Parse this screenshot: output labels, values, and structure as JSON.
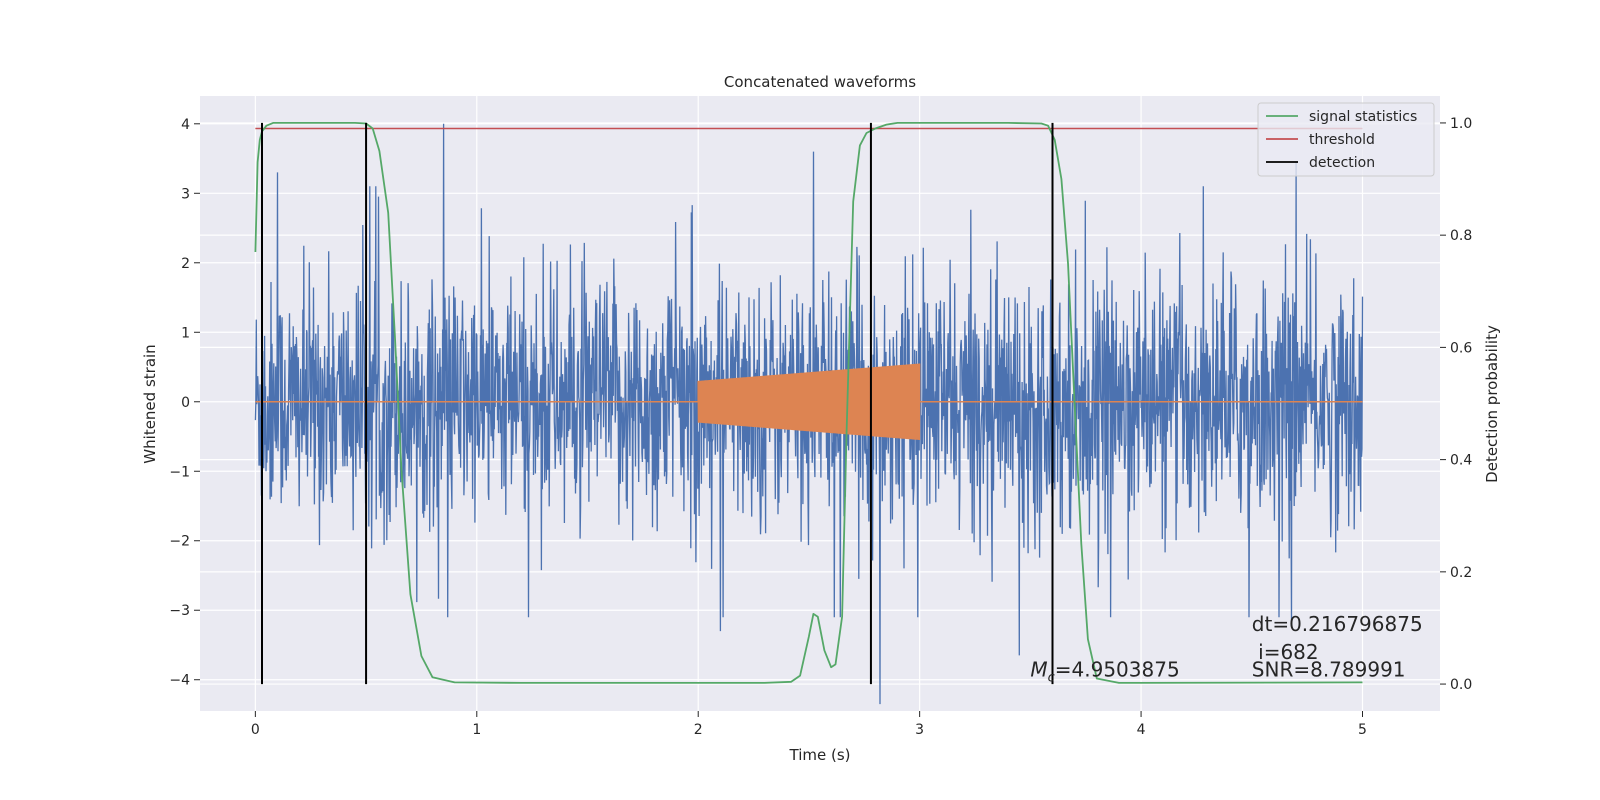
{
  "chart_data": {
    "type": "line",
    "title": "Concatenated waveforms",
    "xlabel": "Time (s)",
    "ylabel": "Whitened strain",
    "y2label": "Detection probability",
    "xlim": [
      -0.25,
      5.35
    ],
    "ylim": [
      -4.45,
      4.4
    ],
    "y2lim": [
      -0.048,
      1.048
    ],
    "x_ticks": [
      0,
      1,
      2,
      3,
      4,
      5
    ],
    "x_tick_labels": [
      "0",
      "1",
      "2",
      "3",
      "4",
      "5"
    ],
    "y_ticks": [
      -4,
      -3,
      -2,
      -1,
      0,
      1,
      2,
      3,
      4
    ],
    "y_tick_labels": [
      "−4",
      "−3",
      "−2",
      "−1",
      "0",
      "1",
      "2",
      "3",
      "4"
    ],
    "y2_ticks": [
      0,
      0.2,
      0.4,
      0.6,
      0.8,
      1.0
    ],
    "y2_tick_labels": [
      "0.0",
      "0.2",
      "0.4",
      "0.6",
      "0.8",
      "1.0"
    ],
    "grid": true,
    "legend_position": "top-right",
    "colors": {
      "background": "#eaeaf2",
      "grid": "#ffffff",
      "strain": "#4c72b0",
      "template": "#dd8452",
      "signal_statistics": "#55a868",
      "threshold": "#c44e52",
      "detection": "#000000"
    },
    "series": [
      {
        "name": "signal statistics",
        "axis": "right",
        "x": [
          0,
          0.01,
          0.02,
          0.03,
          0.05,
          0.08,
          0.12,
          0.2,
          0.3,
          0.45,
          0.5,
          0.53,
          0.56,
          0.6,
          0.63,
          0.66,
          0.7,
          0.75,
          0.8,
          0.9,
          1.2,
          2.0,
          2.3,
          2.42,
          2.46,
          2.5,
          2.52,
          2.54,
          2.57,
          2.6,
          2.62,
          2.65,
          2.67,
          2.7,
          2.73,
          2.76,
          2.8,
          2.85,
          2.9,
          3.0,
          3.4,
          3.55,
          3.58,
          3.61,
          3.64,
          3.67,
          3.7,
          3.73,
          3.76,
          3.8,
          3.9,
          4.0,
          5.0
        ],
        "values": [
          0.77,
          0.93,
          0.97,
          0.985,
          0.995,
          1.0,
          1.0,
          1.0,
          1.0,
          1.0,
          0.999,
          0.99,
          0.95,
          0.84,
          0.62,
          0.38,
          0.16,
          0.05,
          0.012,
          0.003,
          0.002,
          0.002,
          0.002,
          0.004,
          0.015,
          0.085,
          0.125,
          0.12,
          0.06,
          0.03,
          0.035,
          0.12,
          0.45,
          0.86,
          0.96,
          0.982,
          0.99,
          0.997,
          1.0,
          1.0,
          1.0,
          0.999,
          0.995,
          0.97,
          0.9,
          0.75,
          0.5,
          0.25,
          0.08,
          0.01,
          0.002,
          0.002,
          0.003
        ]
      },
      {
        "name": "threshold",
        "axis": "right",
        "x": [
          0,
          5
        ],
        "values": [
          0.99,
          0.99
        ]
      }
    ],
    "detections": {
      "name": "detection",
      "x": [
        0.03,
        0.5,
        2.78,
        3.6
      ],
      "ymin": 0,
      "ymax": 1.0
    },
    "strain": {
      "x_range": [
        0,
        5
      ],
      "noise_std": 0.85,
      "spikes": [
        {
          "x": 0.85,
          "value": 4.0
        },
        {
          "x": 2.52,
          "value": 3.6
        },
        {
          "x": 2.82,
          "value": -4.35
        },
        {
          "x": 4.7,
          "value": 3.45
        },
        {
          "x": 3.45,
          "value": -3.65
        },
        {
          "x": 2.1,
          "value": -3.3
        },
        {
          "x": 4.68,
          "value": -3.2
        },
        {
          "x": 0.1,
          "value": 3.3
        }
      ]
    },
    "template": {
      "x_range": [
        2.0,
        3.0
      ],
      "amplitude_start": 0.3,
      "amplitude_end": 0.55
    },
    "annotations": [
      {
        "text_prefix": "M",
        "text_sub": "c",
        "text": "=4.9503875",
        "x": 3.5,
        "y": -3.95
      },
      {
        "text": "dt=0.216796875",
        "x": 4.5,
        "y": -3.3
      },
      {
        "text": " i=682",
        "x": 4.5,
        "y": -3.7
      },
      {
        "text": "SNR=8.789991",
        "x": 4.5,
        "y": -3.95
      }
    ]
  }
}
